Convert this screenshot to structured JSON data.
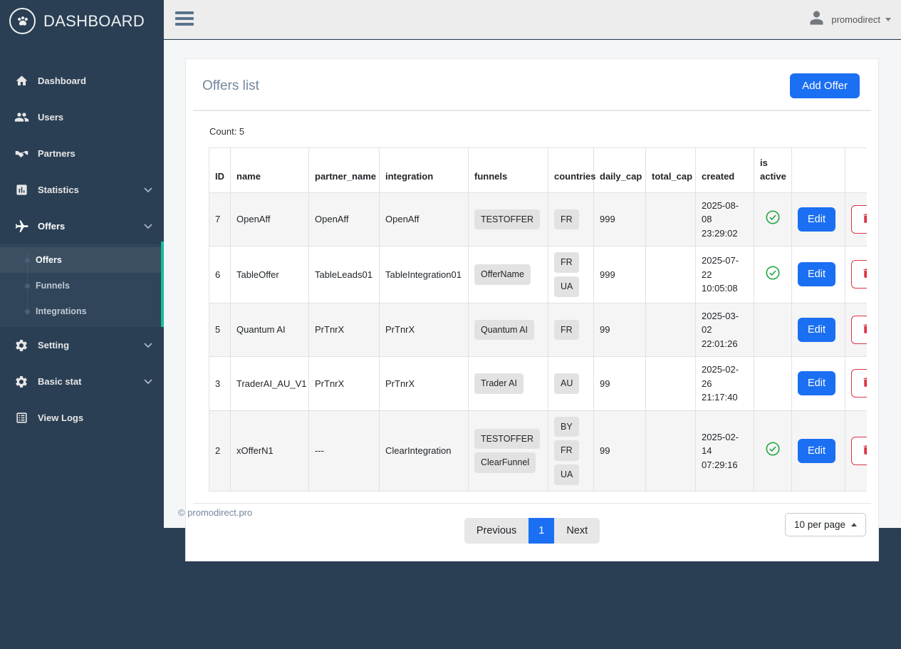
{
  "sidebar": {
    "logo_text": "DASHBOARD",
    "logo_icon": "paw-icon",
    "items": [
      {
        "label": "Dashboard",
        "icon": "home-icon",
        "has_chevron": false
      },
      {
        "label": "Users",
        "icon": "users-icon",
        "has_chevron": false
      },
      {
        "label": "Partners",
        "icon": "handshake-icon",
        "has_chevron": false
      },
      {
        "label": "Statistics",
        "icon": "bar-chart-icon",
        "has_chevron": true
      },
      {
        "label": "Offers",
        "icon": "plane-icon",
        "has_chevron": true,
        "active": true,
        "children": [
          {
            "label": "Offers",
            "active": true
          },
          {
            "label": "Funnels"
          },
          {
            "label": "Integrations"
          }
        ]
      },
      {
        "label": "Setting",
        "icon": "gear-icon",
        "has_chevron": true
      },
      {
        "label": "Basic stat",
        "icon": "gear-icon",
        "has_chevron": true
      },
      {
        "label": "View Logs",
        "icon": "list-icon",
        "has_chevron": false
      }
    ]
  },
  "topbar": {
    "menu_toggle_icon": "hamburger-icon",
    "user_icon": "user-avatar-icon",
    "user_name": "promodirect"
  },
  "main": {
    "title": "Offers list",
    "add_button_label": "Add Offer",
    "count_label": "Count: 5",
    "table": {
      "headers": [
        "ID",
        "name",
        "partner_name",
        "integration",
        "funnels",
        "countries",
        "daily_cap",
        "total_cap",
        "created",
        "is active",
        "",
        ""
      ],
      "edit_label": "Edit",
      "delete_icon": "trash-icon",
      "active_icon": "check-circle-icon",
      "rows": [
        {
          "id": "7",
          "name": "OpenAff",
          "partner_name": "OpenAff",
          "integration": "OpenAff",
          "funnels": [
            "TESTOFFER"
          ],
          "countries": [
            "FR"
          ],
          "daily_cap": "999",
          "total_cap": "",
          "created": "2025-08-08 23:29:02",
          "is_active": true
        },
        {
          "id": "6",
          "name": "TableOffer",
          "partner_name": "TableLeads01",
          "integration": "TableIntegration01",
          "funnels": [
            "OfferName"
          ],
          "countries": [
            "FR",
            "UA"
          ],
          "daily_cap": "999",
          "total_cap": "",
          "created": "2025-07-22 10:05:08",
          "is_active": true
        },
        {
          "id": "5",
          "name": "Quantum AI",
          "partner_name": "PrTnrX",
          "integration": "PrTnrX",
          "funnels": [
            "Quantum AI"
          ],
          "countries": [
            "FR"
          ],
          "daily_cap": "99",
          "total_cap": "",
          "created": "2025-03-02 22:01:26",
          "is_active": false
        },
        {
          "id": "3",
          "name": "TraderAI_AU_V1",
          "partner_name": "PrTnrX",
          "integration": "PrTnrX",
          "funnels": [
            "Trader AI"
          ],
          "countries": [
            "AU"
          ],
          "daily_cap": "99",
          "total_cap": "",
          "created": "2025-02-26 21:17:40",
          "is_active": false
        },
        {
          "id": "2",
          "name": "xOfferN1",
          "partner_name": "---",
          "integration": "ClearIntegration",
          "funnels": [
            "TESTOFFER",
            "ClearFunnel"
          ],
          "countries": [
            "BY",
            "FR",
            "UA"
          ],
          "daily_cap": "99",
          "total_cap": "",
          "created": "2025-02-14 07:29:16",
          "is_active": true
        }
      ]
    },
    "pagination": {
      "previous": "Previous",
      "current_page": "1",
      "next": "Next",
      "per_page": "10 per page"
    },
    "footer_text": "© promodirect.pro"
  },
  "colors": {
    "sidebar_bg": "#2A3F54",
    "topnav_bg": "#EDEDED",
    "content_bg": "#F5F6F7",
    "accent_blue": "#1B6FF2",
    "accent_teal": "#1ABB9C",
    "success_green": "#28A745",
    "danger_red": "#DC3545",
    "badge_bg": "#E2E2E2"
  }
}
